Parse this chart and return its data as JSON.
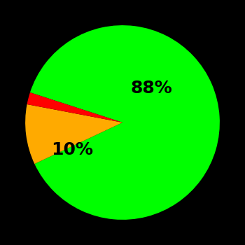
{
  "slices": [
    88,
    10,
    2
  ],
  "colors": [
    "#00ff00",
    "#ffaa00",
    "#ff0000"
  ],
  "labels": [
    "88%",
    "10%",
    ""
  ],
  "background_color": "#000000",
  "label_fontsize": 18,
  "label_fontweight": "bold",
  "startangle": 162,
  "figsize": [
    3.5,
    3.5
  ],
  "dpi": 100
}
